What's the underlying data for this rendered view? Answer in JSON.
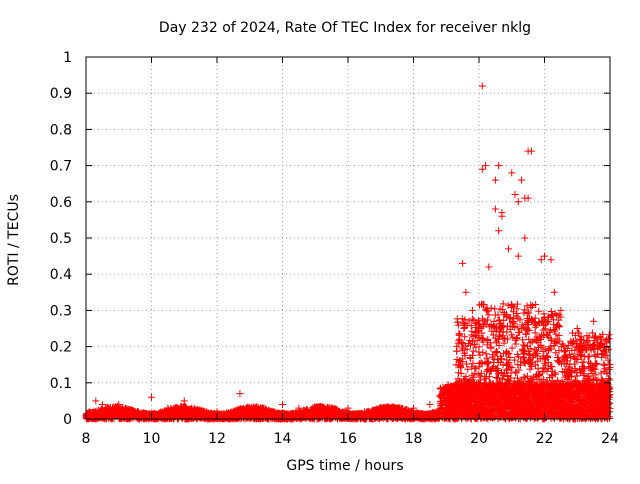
{
  "chart_data": {
    "type": "scatter",
    "title": "Day 232 of 2024, Rate Of TEC Index for receiver nklg",
    "xlabel": "GPS time / hours",
    "ylabel": "ROTI / TECUs",
    "xlim": [
      8,
      24
    ],
    "ylim": [
      0,
      1
    ],
    "xticks": [
      8,
      10,
      12,
      14,
      16,
      18,
      20,
      22,
      24
    ],
    "xtick_labels": [
      "8",
      "10",
      "12",
      "14",
      "16",
      "18",
      "20",
      "22",
      "24"
    ],
    "yticks": [
      0,
      0.1,
      0.2,
      0.3,
      0.4,
      0.5,
      0.6,
      0.7,
      0.8,
      0.9,
      1
    ],
    "ytick_labels": [
      "0",
      "0.1",
      "0.2",
      "0.3",
      "0.4",
      "0.5",
      "0.6",
      "0.7",
      "0.8",
      "0.9",
      "1"
    ],
    "grid": true,
    "marker": "+",
    "series_color": "#ff0000",
    "series": [
      {
        "name": "ROTI",
        "note": "dense '+' cloud; values listed are representative outliers plus envelope samples",
        "points": [
          [
            8.1,
            0.02
          ],
          [
            8.3,
            0.05
          ],
          [
            8.5,
            0.04
          ],
          [
            8.7,
            0.03
          ],
          [
            9.0,
            0.04
          ],
          [
            9.5,
            0.02
          ],
          [
            10.0,
            0.06
          ],
          [
            10.5,
            0.03
          ],
          [
            11.0,
            0.05
          ],
          [
            11.5,
            0.02
          ],
          [
            12.0,
            0.02
          ],
          [
            12.7,
            0.07
          ],
          [
            13.0,
            0.03
          ],
          [
            13.5,
            0.02
          ],
          [
            14.0,
            0.04
          ],
          [
            14.5,
            0.03
          ],
          [
            15.0,
            0.02
          ],
          [
            15.5,
            0.02
          ],
          [
            16.0,
            0.03
          ],
          [
            16.5,
            0.02
          ],
          [
            17.0,
            0.03
          ],
          [
            17.5,
            0.03
          ],
          [
            18.0,
            0.03
          ],
          [
            18.5,
            0.04
          ],
          [
            19.0,
            0.08
          ],
          [
            19.3,
            0.15
          ],
          [
            19.5,
            0.43
          ],
          [
            19.6,
            0.35
          ],
          [
            19.8,
            0.3
          ],
          [
            20.1,
            0.92
          ],
          [
            20.2,
            0.7
          ],
          [
            20.1,
            0.69
          ],
          [
            20.3,
            0.42
          ],
          [
            20.5,
            0.66
          ],
          [
            20.5,
            0.58
          ],
          [
            20.6,
            0.7
          ],
          [
            20.7,
            0.57
          ],
          [
            20.7,
            0.56
          ],
          [
            20.6,
            0.52
          ],
          [
            20.9,
            0.47
          ],
          [
            21.0,
            0.68
          ],
          [
            21.1,
            0.62
          ],
          [
            21.2,
            0.6
          ],
          [
            21.3,
            0.66
          ],
          [
            21.4,
            0.61
          ],
          [
            21.5,
            0.74
          ],
          [
            21.6,
            0.74
          ],
          [
            21.5,
            0.61
          ],
          [
            21.4,
            0.5
          ],
          [
            21.2,
            0.45
          ],
          [
            21.9,
            0.44
          ],
          [
            22.0,
            0.45
          ],
          [
            22.2,
            0.44
          ],
          [
            22.3,
            0.35
          ],
          [
            22.5,
            0.3
          ],
          [
            23.0,
            0.25
          ],
          [
            23.5,
            0.27
          ],
          [
            23.8,
            0.2
          ],
          [
            24.0,
            0.15
          ]
        ]
      }
    ]
  }
}
